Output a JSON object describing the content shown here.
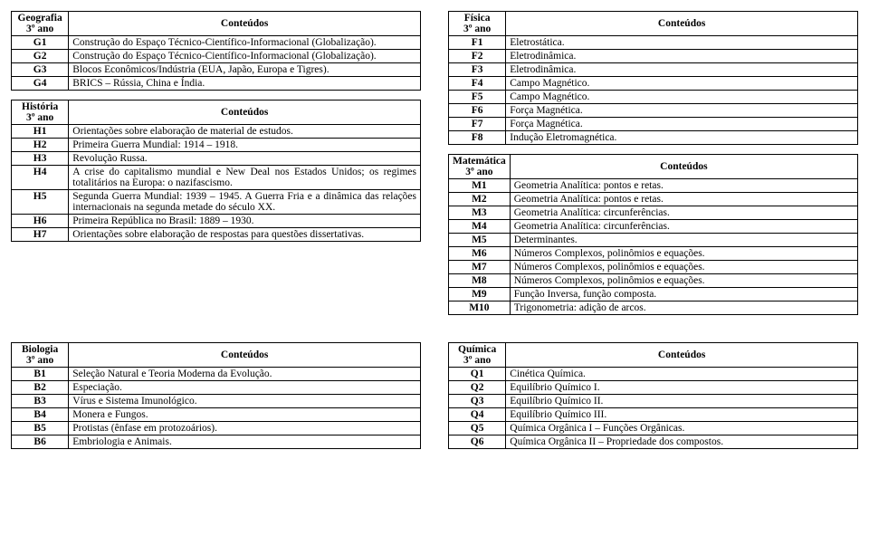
{
  "top": {
    "left": [
      {
        "subject": "Geografia",
        "grade": "3º ano",
        "header": "Conteúdos",
        "rows": [
          {
            "code": "G1",
            "text": "Construção do Espaço Técnico-Científico-Informacional (Globalização)."
          },
          {
            "code": "G2",
            "text": "Construção do Espaço Técnico-Científico-Informacional (Globalização)."
          },
          {
            "code": "G3",
            "text": "Blocos Econômicos/Indústria (EUA, Japão, Europa e Tigres)."
          },
          {
            "code": "G4",
            "text": "BRICS – Rússia, China e Índia."
          }
        ]
      },
      {
        "subject": "História",
        "grade": "3º ano",
        "header": "Conteúdos",
        "rows": [
          {
            "code": "H1",
            "text": "Orientações sobre elaboração de material de estudos."
          },
          {
            "code": "H2",
            "text": "Primeira Guerra Mundial: 1914 – 1918."
          },
          {
            "code": "H3",
            "text": "Revolução Russa."
          },
          {
            "code": "H4",
            "text": "A crise do capitalismo mundial e New Deal nos Estados Unidos; os regimes totalitários na Europa: o nazifascismo."
          },
          {
            "code": "H5",
            "text": "Segunda Guerra Mundial: 1939 – 1945.\nA Guerra Fria e a dinâmica das relações internacionais na segunda metade do século XX."
          },
          {
            "code": "H6",
            "text": "Primeira República no Brasil: 1889 – 1930."
          },
          {
            "code": "H7",
            "text": "Orientações sobre elaboração de respostas para questões dissertativas."
          }
        ]
      }
    ],
    "right": [
      {
        "subject": "Física",
        "grade": "3º ano",
        "header": "Conteúdos",
        "rows": [
          {
            "code": "F1",
            "text": "Eletrostática."
          },
          {
            "code": "F2",
            "text": "Eletrodinâmica."
          },
          {
            "code": "F3",
            "text": "Eletrodinâmica."
          },
          {
            "code": "F4",
            "text": "Campo Magnético."
          },
          {
            "code": "F5",
            "text": "Campo Magnético."
          },
          {
            "code": "F6",
            "text": "Força Magnética."
          },
          {
            "code": "F7",
            "text": "Força Magnética."
          },
          {
            "code": "F8",
            "text": "Indução Eletromagnética."
          }
        ]
      },
      {
        "subject": "Matemática",
        "grade": "3º ano",
        "header": "Conteúdos",
        "rows": [
          {
            "code": "M1",
            "text": "Geometria Analítica: pontos e retas."
          },
          {
            "code": "M2",
            "text": "Geometria Analítica: pontos e retas."
          },
          {
            "code": "M3",
            "text": "Geometria Analítica: circunferências."
          },
          {
            "code": "M4",
            "text": "Geometria Analítica: circunferências."
          },
          {
            "code": "M5",
            "text": "Determinantes."
          },
          {
            "code": "M6",
            "text": "Números Complexos, polinômios e equações."
          },
          {
            "code": "M7",
            "text": "Números Complexos, polinômios e equações."
          },
          {
            "code": "M8",
            "text": "Números Complexos, polinômios e equações."
          },
          {
            "code": "M9",
            "text": "Função Inversa, função composta."
          },
          {
            "code": "M10",
            "text": "Trigonometria: adição de arcos."
          }
        ]
      }
    ]
  },
  "bottom": {
    "left": [
      {
        "subject": "Biologia",
        "grade": "3º ano",
        "header": "Conteúdos",
        "rows": [
          {
            "code": "B1",
            "text": "Seleção Natural e Teoria Moderna da Evolução."
          },
          {
            "code": "B2",
            "text": "Especiação."
          },
          {
            "code": "B3",
            "text": "Vírus e Sistema Imunológico."
          },
          {
            "code": "B4",
            "text": "Monera e Fungos."
          },
          {
            "code": "B5",
            "text": "Protistas (ênfase em protozoários)."
          },
          {
            "code": "B6",
            "text": "Embriologia e Animais."
          }
        ]
      }
    ],
    "right": [
      {
        "subject": "Química",
        "grade": "3º ano",
        "header": "Conteúdos",
        "rows": [
          {
            "code": "Q1",
            "text": "Cinética Química."
          },
          {
            "code": "Q2",
            "text": "Equilíbrio Químico I."
          },
          {
            "code": "Q3",
            "text": "Equilíbrio Químico II."
          },
          {
            "code": "Q4",
            "text": "Equilíbrio Químico III."
          },
          {
            "code": "Q5",
            "text": "Química Orgânica I – Funções Orgânicas."
          },
          {
            "code": "Q6",
            "text": "Química Orgânica II – Propriedade dos compostos."
          }
        ]
      }
    ]
  }
}
